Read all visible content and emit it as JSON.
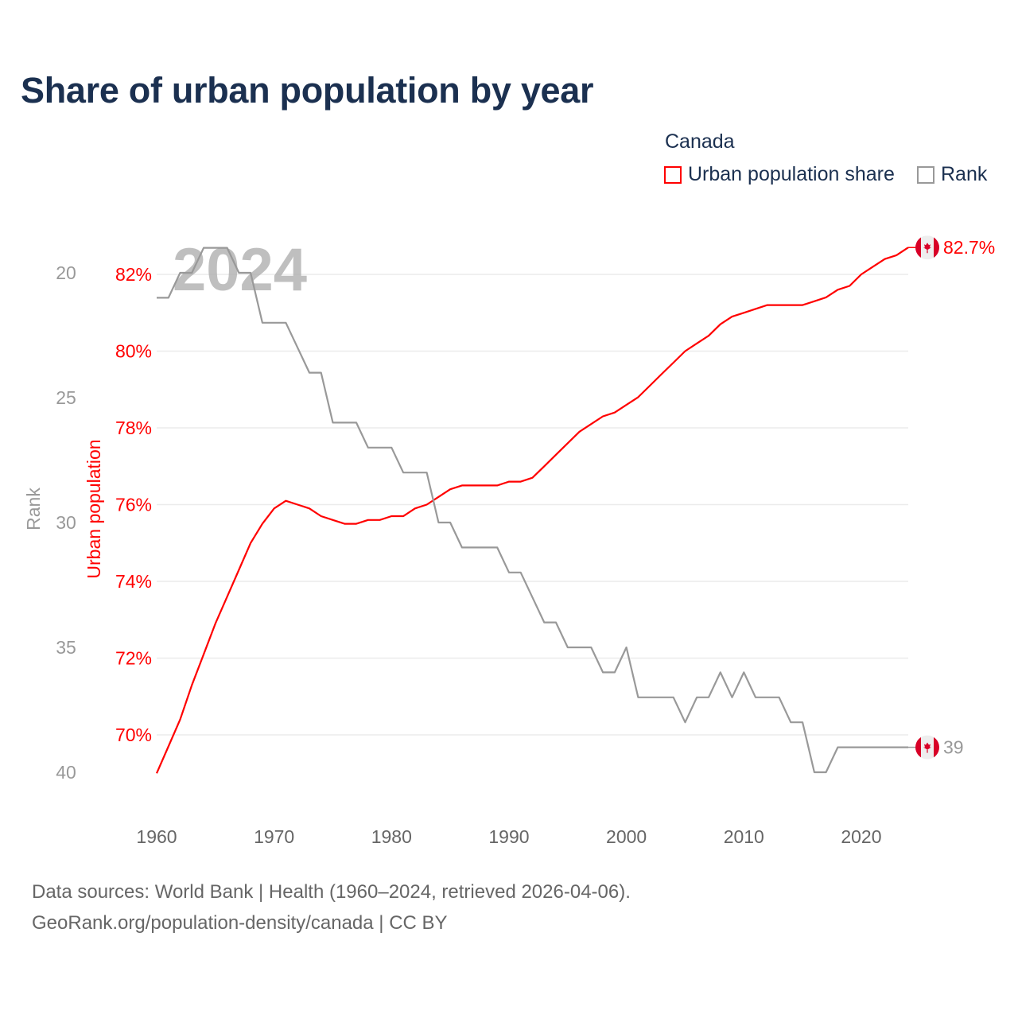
{
  "chart_data": {
    "type": "line",
    "title": "Share of urban population by year",
    "legend": {
      "title": "Canada",
      "placement": "top-right",
      "entries": [
        {
          "label": "Urban population share",
          "color": "#ff0000"
        },
        {
          "label": "Rank",
          "color": "#999999"
        }
      ]
    },
    "xlabel": "",
    "x_ticks": [
      1960,
      1970,
      1980,
      1990,
      2000,
      2010,
      2020
    ],
    "xlim": [
      1960,
      2024
    ],
    "y_left_label": "Rank",
    "y_left_ticks": [
      20,
      25,
      30,
      35,
      40
    ],
    "y_left_lim": [
      40,
      19
    ],
    "y_left_inverted": true,
    "y_right_label": "Urban population",
    "y_right_ticks": [
      "82%",
      "80%",
      "78%",
      "76%",
      "74%",
      "72%",
      "70%"
    ],
    "y_right_tick_values": [
      82,
      80,
      78,
      76,
      74,
      72,
      70
    ],
    "y_right_lim": [
      69,
      83
    ],
    "grid": true,
    "year_watermark": "2024",
    "x": [
      1960,
      1961,
      1962,
      1963,
      1964,
      1965,
      1966,
      1967,
      1968,
      1969,
      1970,
      1971,
      1972,
      1973,
      1974,
      1975,
      1976,
      1977,
      1978,
      1979,
      1980,
      1981,
      1982,
      1983,
      1984,
      1985,
      1986,
      1987,
      1988,
      1989,
      1990,
      1991,
      1992,
      1993,
      1994,
      1995,
      1996,
      1997,
      1998,
      1999,
      2000,
      2001,
      2002,
      2003,
      2004,
      2005,
      2006,
      2007,
      2008,
      2009,
      2010,
      2011,
      2012,
      2013,
      2014,
      2015,
      2016,
      2017,
      2018,
      2019,
      2020,
      2021,
      2022,
      2023,
      2024
    ],
    "series": [
      {
        "name": "Urban population share",
        "unit": "%",
        "color": "#ff0000",
        "values": [
          69.0,
          69.7,
          70.4,
          71.3,
          72.1,
          72.9,
          73.6,
          74.3,
          75.0,
          75.5,
          75.9,
          76.1,
          76.0,
          75.9,
          75.7,
          75.6,
          75.5,
          75.5,
          75.6,
          75.6,
          75.7,
          75.7,
          75.9,
          76.0,
          76.2,
          76.4,
          76.5,
          76.5,
          76.5,
          76.5,
          76.6,
          76.6,
          76.7,
          77.0,
          77.3,
          77.6,
          77.9,
          78.1,
          78.3,
          78.4,
          78.6,
          78.8,
          79.1,
          79.4,
          79.7,
          80.0,
          80.2,
          80.4,
          80.7,
          80.9,
          81.0,
          81.1,
          81.2,
          81.2,
          81.2,
          81.2,
          81.3,
          81.4,
          81.6,
          81.7,
          82.0,
          82.2,
          82.4,
          82.5,
          82.7
        ],
        "end_label": "82.7%"
      },
      {
        "name": "Rank",
        "color": "#999999",
        "values": [
          21,
          21,
          20,
          20,
          19,
          19,
          19,
          20,
          20,
          22,
          22,
          22,
          23,
          24,
          24,
          26,
          26,
          26,
          27,
          27,
          27,
          28,
          28,
          28,
          30,
          30,
          31,
          31,
          31,
          31,
          32,
          32,
          33,
          34,
          34,
          35,
          35,
          35,
          36,
          36,
          35,
          37,
          37,
          37,
          37,
          38,
          37,
          37,
          36,
          37,
          36,
          37,
          37,
          37,
          38,
          38,
          40,
          40,
          39,
          39,
          39,
          39,
          39,
          39,
          39
        ],
        "end_label": "39"
      }
    ]
  },
  "footer": {
    "line1": "Data sources: World Bank | Health (1960–2024, retrieved 2026-04-06).",
    "line2": "GeoRank.org/population-density/canada | CC BY"
  }
}
